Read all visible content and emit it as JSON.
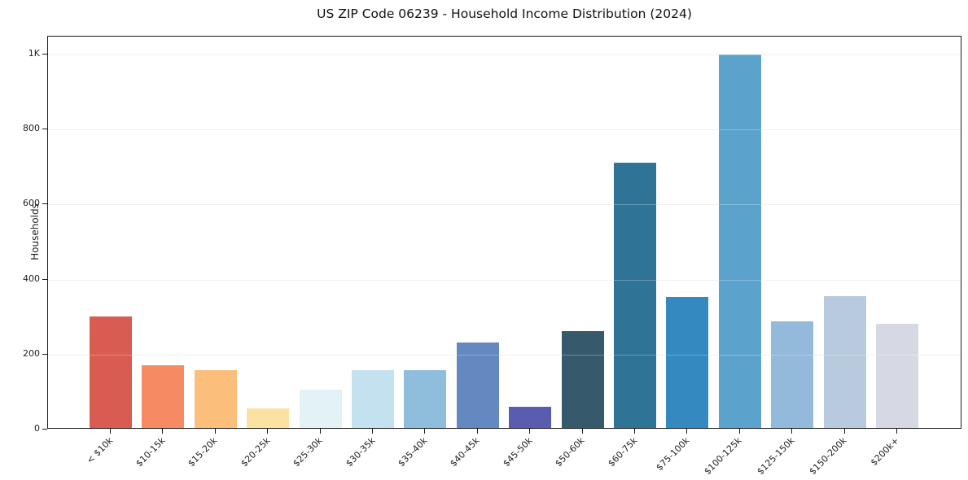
{
  "figure": {
    "background": "#ffffff"
  },
  "chart_data": {
    "type": "bar",
    "title": "US ZIP Code 06239 - Household Income Distribution (2024)",
    "xlabel": "",
    "ylabel": "Households",
    "categories": [
      "< $10k",
      "$10-15k",
      "$15-20k",
      "$20-25k",
      "$25-30k",
      "$30-35k",
      "$35-40k",
      "$40-45k",
      "$45-50k",
      "$50-60k",
      "$60-75k",
      "$75-100k",
      "$100-125k",
      "$125-150k",
      "$150-200k",
      "$200k+"
    ],
    "values": [
      298,
      166,
      155,
      52,
      101,
      155,
      153,
      227,
      56,
      259,
      707,
      350,
      995,
      285,
      351,
      278
    ],
    "bar_colors": [
      "#d95c53",
      "#f58a63",
      "#fcbe7b",
      "#fce2a2",
      "#e3f2f7",
      "#c3e1ef",
      "#8fbddc",
      "#6389c0",
      "#5a5caf",
      "#365a6c",
      "#2f7396",
      "#3389c0",
      "#5ba3cd",
      "#93badb",
      "#b7cade",
      "#d6d8e4"
    ],
    "yticks": [
      {
        "value": 0,
        "label": "0"
      },
      {
        "value": 200,
        "label": "200"
      },
      {
        "value": 400,
        "label": "400"
      },
      {
        "value": 600,
        "label": "600"
      },
      {
        "value": 800,
        "label": "800"
      },
      {
        "value": 1000,
        "label": "1K"
      }
    ],
    "ylim": [
      0,
      1048
    ],
    "grid": "horizontal",
    "legend": "none"
  },
  "style": {
    "spine_color": "#1a1a1a",
    "grid_color": "#e9e9e9",
    "text_color": "#1f1f1f",
    "title_color": "#111111",
    "background": "#ffffff"
  }
}
